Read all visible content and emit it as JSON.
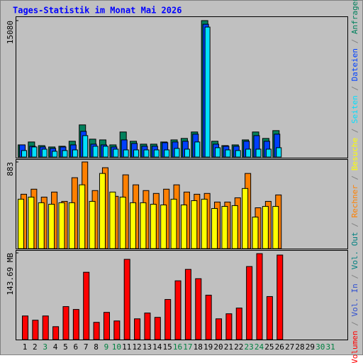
{
  "chart_data": [
    {
      "type": "bar",
      "title": "Tages-Statistik im Monat Mai 2026",
      "ylim": [
        0,
        15080
      ],
      "yticks": [
        15080
      ],
      "series": [
        {
          "name": "Anfragen",
          "color": "#00805c",
          "values": [
            1410,
            1730,
            1330,
            1180,
            1260,
            1810,
            3610,
            2040,
            1960,
            1410,
            2830,
            1810,
            1490,
            1490,
            1730,
            1960,
            2120,
            2830,
            15080,
            1810,
            1330,
            1410,
            1960,
            2830,
            2120,
            2980,
            null,
            null,
            null,
            null,
            null
          ]
        },
        {
          "name": "Dateien",
          "color": "#0040ff",
          "values": [
            1410,
            1260,
            1180,
            1020,
            1180,
            1410,
            2900,
            1490,
            1410,
            1180,
            1960,
            1570,
            1260,
            1260,
            1650,
            1730,
            1810,
            2590,
            14680,
            1490,
            1260,
            1260,
            1810,
            2430,
            1810,
            2590,
            null,
            null,
            null,
            null,
            null
          ]
        },
        {
          "name": "Seiten",
          "color": "#00e0ff",
          "values": [
            790,
            1180,
            940,
            710,
            790,
            860,
            2430,
            1260,
            1260,
            940,
            860,
            860,
            860,
            860,
            860,
            1020,
            940,
            1730,
            14370,
            1100,
            860,
            790,
            940,
            940,
            940,
            1100,
            null,
            null,
            null,
            null,
            null
          ]
        }
      ]
    },
    {
      "type": "bar",
      "ylim": [
        0,
        883
      ],
      "yticks": [
        883
      ],
      "series": [
        {
          "name": "Rechner",
          "color": "#ff8000",
          "values": [
            557,
            608,
            528,
            579,
            485,
            724,
            883,
            594,
            825,
            536,
            753,
            652,
            594,
            565,
            608,
            652,
            579,
            557,
            565,
            478,
            478,
            521,
            767,
            420,
            485,
            550,
            null,
            null,
            null,
            null,
            null
          ]
        },
        {
          "name": "Besuche",
          "color": "#ffff00",
          "values": [
            507,
            528,
            471,
            456,
            471,
            471,
            652,
            485,
            767,
            579,
            528,
            471,
            471,
            456,
            449,
            507,
            449,
            492,
            507,
            413,
            434,
            442,
            615,
            326,
            434,
            434,
            null,
            null,
            null,
            null,
            null
          ]
        }
      ]
    },
    {
      "type": "bar",
      "ylim": [
        0,
        143.69
      ],
      "yticks": [
        {
          "value": 143.69,
          "label": "143.69 MB"
        }
      ],
      "categories": [
        "1",
        "2",
        "3",
        "4",
        "5",
        "6",
        "7",
        "8",
        "9",
        "10",
        "11",
        "12",
        "13",
        "14",
        "15",
        "16",
        "17",
        "18",
        "19",
        "20",
        "21",
        "22",
        "23",
        "24",
        "25",
        "26",
        "27",
        "28",
        "29",
        "30",
        "31"
      ],
      "category_colors": [
        "#000",
        "#000",
        "#008040",
        "#000",
        "#000",
        "#000",
        "#000",
        "#000",
        "#008040",
        "#008040",
        "#000",
        "#000",
        "#000",
        "#000",
        "#000",
        "#008040",
        "#008040",
        "#000",
        "#000",
        "#000",
        "#000",
        "#000",
        "#008040",
        "#008040",
        "#000",
        "#000",
        "#000",
        "#000",
        "#000",
        "#008040",
        "#008040"
      ],
      "series": [
        {
          "name": "Volumen",
          "color": "#ff0000",
          "values": [
            40.0,
            33.0,
            40.0,
            22.4,
            55.4,
            50.7,
            111.9,
            29.5,
            45.9,
            31.8,
            133.1,
            35.3,
            44.8,
            37.7,
            67.1,
            97.8,
            116.6,
            101.3,
            74.2,
            35.3,
            43.6,
            53.0,
            121.3,
            142.5,
            71.9,
            140.2,
            null,
            null,
            null,
            null,
            null
          ]
        },
        {
          "name": "Vol. In",
          "color": "#3050d0",
          "values": [
            null,
            null,
            null,
            null,
            null,
            null,
            null,
            null,
            null,
            null,
            null,
            null,
            null,
            null,
            null,
            null,
            null,
            null,
            null,
            null,
            null,
            null,
            null,
            null,
            null,
            null,
            null,
            null,
            null,
            null,
            null
          ]
        },
        {
          "name": "Vol. Out",
          "color": "#008080",
          "values": [
            null,
            null,
            null,
            null,
            null,
            null,
            null,
            null,
            null,
            null,
            null,
            null,
            null,
            null,
            null,
            null,
            null,
            null,
            null,
            null,
            null,
            null,
            null,
            null,
            null,
            null,
            null,
            null,
            null,
            null,
            null
          ]
        }
      ]
    }
  ]
}
